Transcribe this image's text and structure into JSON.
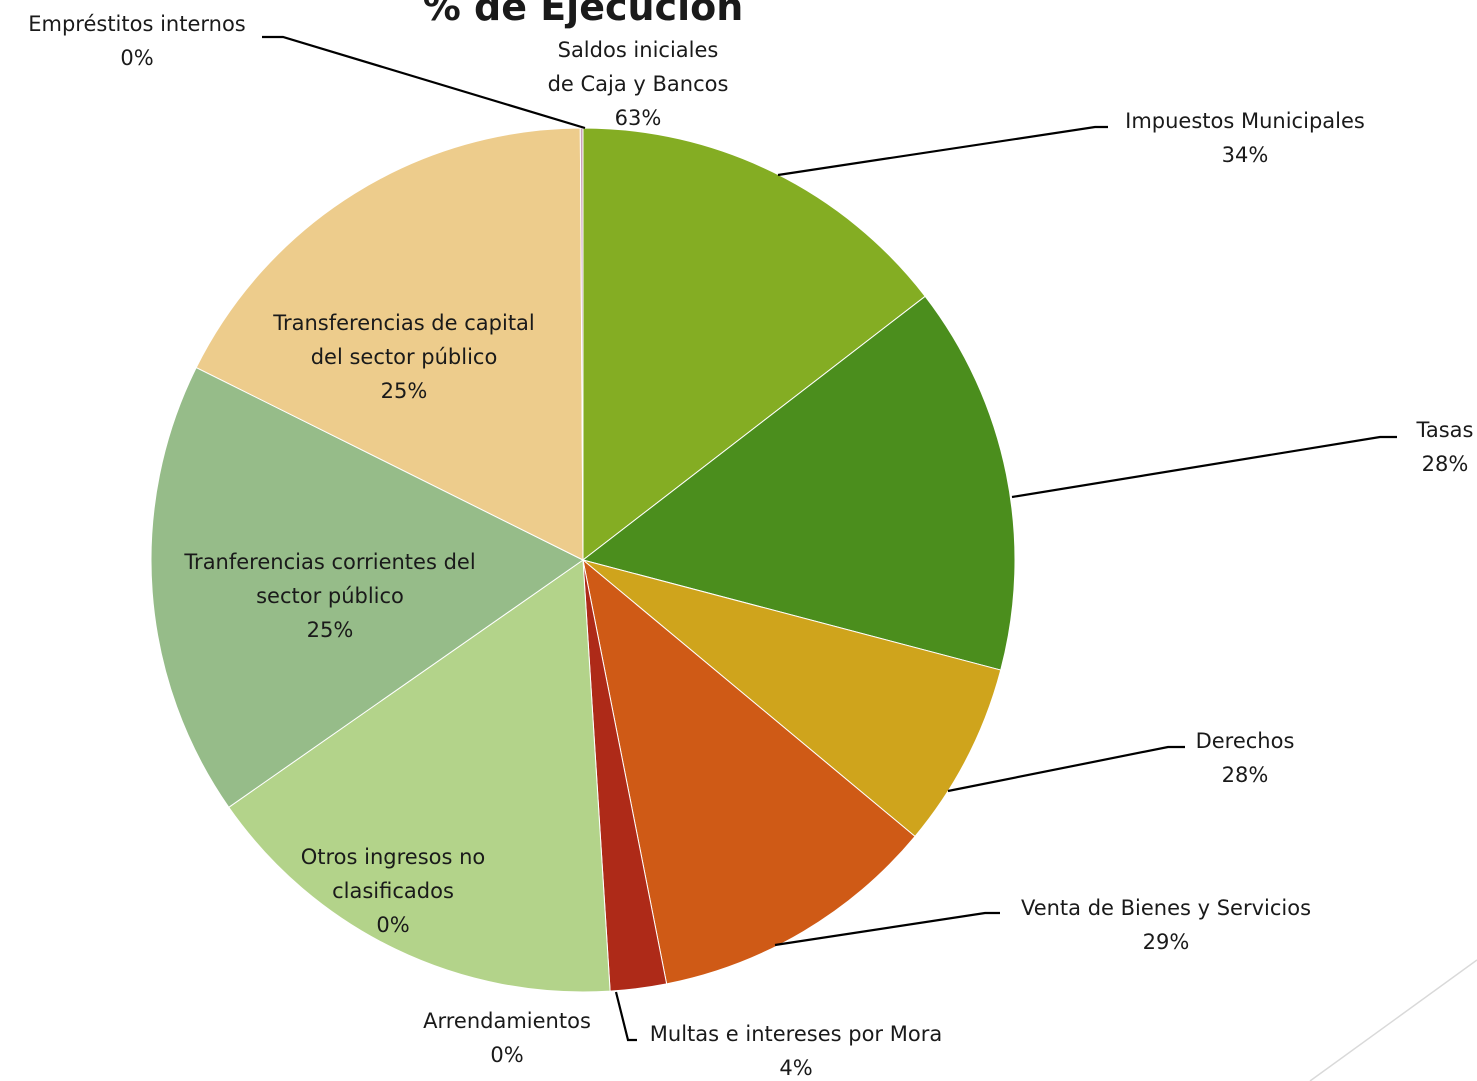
{
  "chart_data": {
    "type": "pie",
    "title": "% de Ejecución",
    "slices": [
      {
        "label": [
          "Saldos iniciales",
          "de Caja y Bancos"
        ],
        "value_label": "63%",
        "share": 0.1455,
        "color": "#84ad23"
      },
      {
        "label": [
          "Impuestos Municipales"
        ],
        "value_label": "34%",
        "share": 0.1455,
        "color": "#4b8e1d"
      },
      {
        "label": [
          "Tasas"
        ],
        "value_label": "28%",
        "share": 0.0,
        "color": "#4b8e1d"
      },
      {
        "label": [
          "Derechos"
        ],
        "value_label": "28%",
        "share": 0.0695,
        "color": "#cfa41c"
      },
      {
        "label": [
          "Venta de Bienes y Servicios"
        ],
        "value_label": "29%",
        "share": 0.1085,
        "color": "#cf5a16"
      },
      {
        "label": [
          "Multas e intereses por Mora"
        ],
        "value_label": "4%",
        "share": 0.021,
        "color": "#ae2a18"
      },
      {
        "label": [
          "Arrendamientos"
        ],
        "value_label": "0%",
        "share": 0.0,
        "color": "#ae2a18"
      },
      {
        "label": [
          "Otros ingresos no",
          "clasificados"
        ],
        "value_label": "0%",
        "share": 0.163,
        "color": "#b3d38a"
      },
      {
        "label": [
          "Tranferencias corrientes del",
          "sector público"
        ],
        "value_label": "25%",
        "share": 0.1705,
        "color": "#96bc89"
      },
      {
        "label": [
          "Transferencias de capital",
          "del sector público"
        ],
        "value_label": "25%",
        "share": 0.1755,
        "color": "#edcc8c"
      },
      {
        "label": [
          "Empréstitos internos"
        ],
        "value_label": "0%",
        "share": 0.001,
        "color": "#c9a0b9"
      }
    ],
    "legend": "none"
  }
}
